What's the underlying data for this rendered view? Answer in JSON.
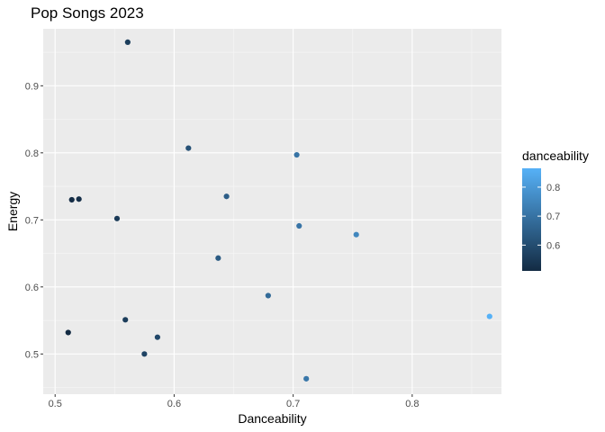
{
  "chart_data": {
    "type": "scatter",
    "title": "Pop Songs 2023",
    "xlabel": "Danceability",
    "ylabel": "Energy",
    "xlim": [
      0.49,
      0.875
    ],
    "ylim": [
      0.44,
      0.985
    ],
    "x_ticks": [
      0.5,
      0.6,
      0.7,
      0.8
    ],
    "x_tick_labels": [
      "0.5",
      "0.6",
      "0.7",
      "0.8"
    ],
    "y_ticks": [
      0.5,
      0.6,
      0.7,
      0.8,
      0.9
    ],
    "y_tick_labels": [
      "0.5",
      "0.6",
      "0.7",
      "0.8",
      "0.9"
    ],
    "grid": true,
    "legend": {
      "title": "danceability",
      "position": "right",
      "ticks": [
        0.6,
        0.7,
        0.8
      ],
      "tick_labels": [
        "0.6",
        "0.7",
        "0.8"
      ],
      "range": [
        0.511,
        0.865
      ],
      "color_low": "#132B43",
      "color_high": "#56B1F7"
    },
    "points": [
      {
        "x": 0.561,
        "y": 0.965
      },
      {
        "x": 0.612,
        "y": 0.807
      },
      {
        "x": 0.703,
        "y": 0.797
      },
      {
        "x": 0.514,
        "y": 0.73
      },
      {
        "x": 0.52,
        "y": 0.731
      },
      {
        "x": 0.644,
        "y": 0.735
      },
      {
        "x": 0.552,
        "y": 0.702
      },
      {
        "x": 0.705,
        "y": 0.691
      },
      {
        "x": 0.753,
        "y": 0.678
      },
      {
        "x": 0.637,
        "y": 0.643
      },
      {
        "x": 0.679,
        "y": 0.587
      },
      {
        "x": 0.559,
        "y": 0.551
      },
      {
        "x": 0.865,
        "y": 0.556
      },
      {
        "x": 0.511,
        "y": 0.532
      },
      {
        "x": 0.586,
        "y": 0.525
      },
      {
        "x": 0.575,
        "y": 0.5
      },
      {
        "x": 0.711,
        "y": 0.463
      }
    ]
  }
}
